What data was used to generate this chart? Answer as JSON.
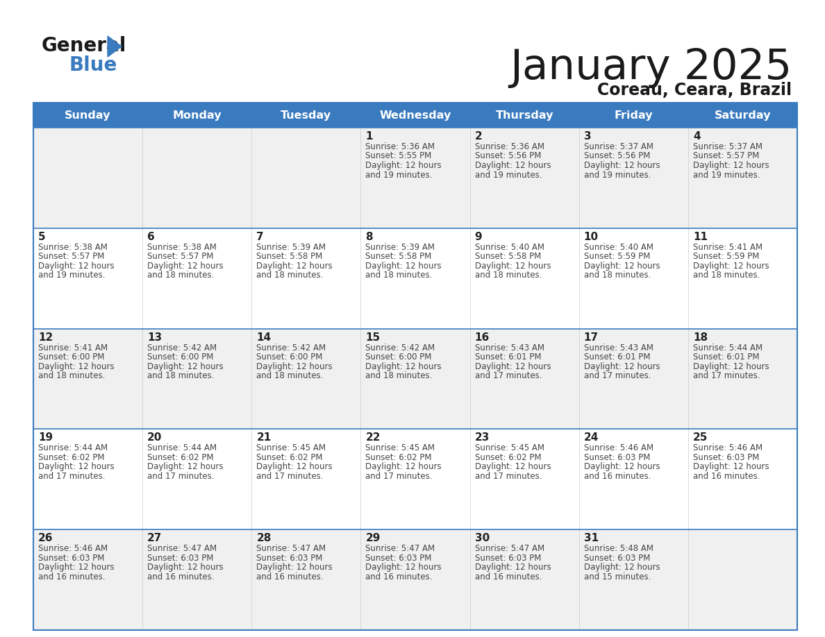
{
  "title": "January 2025",
  "subtitle": "Coreau, Ceara, Brazil",
  "days_of_week": [
    "Sunday",
    "Monday",
    "Tuesday",
    "Wednesday",
    "Thursday",
    "Friday",
    "Saturday"
  ],
  "header_bg": "#3a7bbf",
  "header_text": "#ffffff",
  "cell_bg_odd": "#f0f0f0",
  "cell_bg_even": "#ffffff",
  "separator_color": "#3a7bbf",
  "title_color": "#1a1a1a",
  "subtitle_color": "#1a1a1a",
  "day_num_color": "#222222",
  "cell_text_color": "#444444",
  "calendar_data": [
    [
      {
        "day": "",
        "sunrise": "",
        "sunset": "",
        "daylight": ""
      },
      {
        "day": "",
        "sunrise": "",
        "sunset": "",
        "daylight": ""
      },
      {
        "day": "",
        "sunrise": "",
        "sunset": "",
        "daylight": ""
      },
      {
        "day": "1",
        "sunrise": "5:36 AM",
        "sunset": "5:55 PM",
        "daylight": "19 minutes."
      },
      {
        "day": "2",
        "sunrise": "5:36 AM",
        "sunset": "5:56 PM",
        "daylight": "19 minutes."
      },
      {
        "day": "3",
        "sunrise": "5:37 AM",
        "sunset": "5:56 PM",
        "daylight": "19 minutes."
      },
      {
        "day": "4",
        "sunrise": "5:37 AM",
        "sunset": "5:57 PM",
        "daylight": "19 minutes."
      }
    ],
    [
      {
        "day": "5",
        "sunrise": "5:38 AM",
        "sunset": "5:57 PM",
        "daylight": "19 minutes."
      },
      {
        "day": "6",
        "sunrise": "5:38 AM",
        "sunset": "5:57 PM",
        "daylight": "18 minutes."
      },
      {
        "day": "7",
        "sunrise": "5:39 AM",
        "sunset": "5:58 PM",
        "daylight": "18 minutes."
      },
      {
        "day": "8",
        "sunrise": "5:39 AM",
        "sunset": "5:58 PM",
        "daylight": "18 minutes."
      },
      {
        "day": "9",
        "sunrise": "5:40 AM",
        "sunset": "5:58 PM",
        "daylight": "18 minutes."
      },
      {
        "day": "10",
        "sunrise": "5:40 AM",
        "sunset": "5:59 PM",
        "daylight": "18 minutes."
      },
      {
        "day": "11",
        "sunrise": "5:41 AM",
        "sunset": "5:59 PM",
        "daylight": "18 minutes."
      }
    ],
    [
      {
        "day": "12",
        "sunrise": "5:41 AM",
        "sunset": "6:00 PM",
        "daylight": "18 minutes."
      },
      {
        "day": "13",
        "sunrise": "5:42 AM",
        "sunset": "6:00 PM",
        "daylight": "18 minutes."
      },
      {
        "day": "14",
        "sunrise": "5:42 AM",
        "sunset": "6:00 PM",
        "daylight": "18 minutes."
      },
      {
        "day": "15",
        "sunrise": "5:42 AM",
        "sunset": "6:00 PM",
        "daylight": "18 minutes."
      },
      {
        "day": "16",
        "sunrise": "5:43 AM",
        "sunset": "6:01 PM",
        "daylight": "17 minutes."
      },
      {
        "day": "17",
        "sunrise": "5:43 AM",
        "sunset": "6:01 PM",
        "daylight": "17 minutes."
      },
      {
        "day": "18",
        "sunrise": "5:44 AM",
        "sunset": "6:01 PM",
        "daylight": "17 minutes."
      }
    ],
    [
      {
        "day": "19",
        "sunrise": "5:44 AM",
        "sunset": "6:02 PM",
        "daylight": "17 minutes."
      },
      {
        "day": "20",
        "sunrise": "5:44 AM",
        "sunset": "6:02 PM",
        "daylight": "17 minutes."
      },
      {
        "day": "21",
        "sunrise": "5:45 AM",
        "sunset": "6:02 PM",
        "daylight": "17 minutes."
      },
      {
        "day": "22",
        "sunrise": "5:45 AM",
        "sunset": "6:02 PM",
        "daylight": "17 minutes."
      },
      {
        "day": "23",
        "sunrise": "5:45 AM",
        "sunset": "6:02 PM",
        "daylight": "17 minutes."
      },
      {
        "day": "24",
        "sunrise": "5:46 AM",
        "sunset": "6:03 PM",
        "daylight": "16 minutes."
      },
      {
        "day": "25",
        "sunrise": "5:46 AM",
        "sunset": "6:03 PM",
        "daylight": "16 minutes."
      }
    ],
    [
      {
        "day": "26",
        "sunrise": "5:46 AM",
        "sunset": "6:03 PM",
        "daylight": "16 minutes."
      },
      {
        "day": "27",
        "sunrise": "5:47 AM",
        "sunset": "6:03 PM",
        "daylight": "16 minutes."
      },
      {
        "day": "28",
        "sunrise": "5:47 AM",
        "sunset": "6:03 PM",
        "daylight": "16 minutes."
      },
      {
        "day": "29",
        "sunrise": "5:47 AM",
        "sunset": "6:03 PM",
        "daylight": "16 minutes."
      },
      {
        "day": "30",
        "sunrise": "5:47 AM",
        "sunset": "6:03 PM",
        "daylight": "16 minutes."
      },
      {
        "day": "31",
        "sunrise": "5:48 AM",
        "sunset": "6:03 PM",
        "daylight": "15 minutes."
      },
      {
        "day": "",
        "sunrise": "",
        "sunset": "",
        "daylight": ""
      }
    ]
  ]
}
